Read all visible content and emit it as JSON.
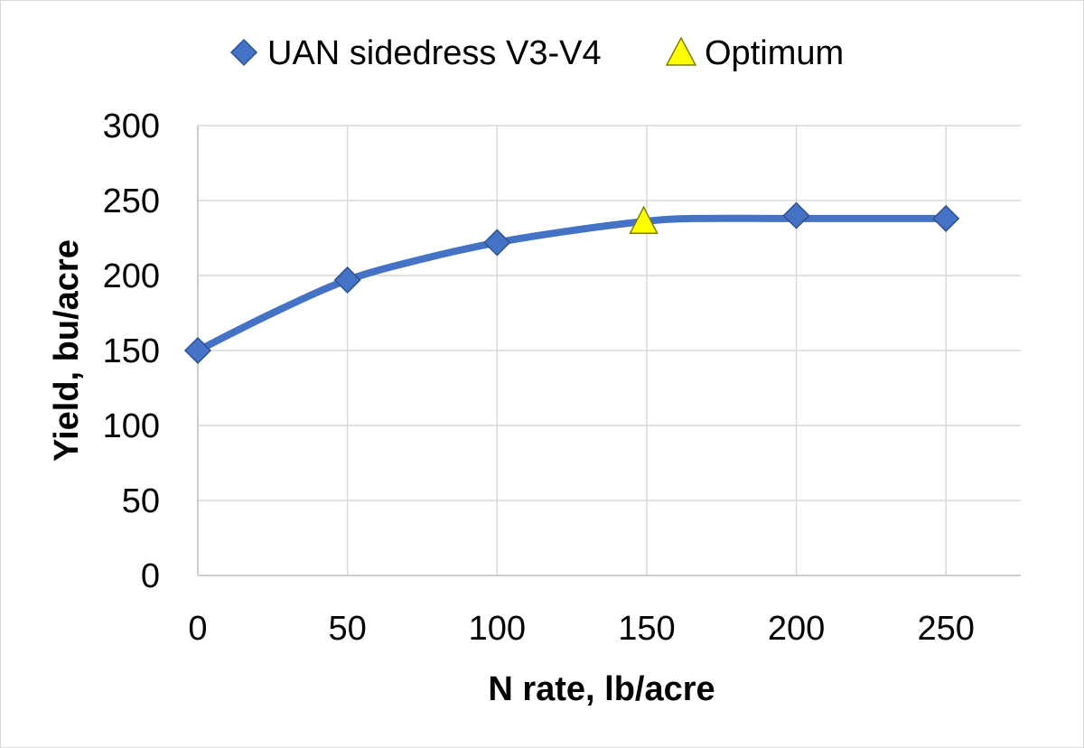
{
  "chart_data": {
    "type": "scatter",
    "title": "",
    "xlabel": "N rate, lb/acre",
    "ylabel": "Yield, bu/acre",
    "xlim": [
      0,
      275
    ],
    "ylim": [
      0,
      300
    ],
    "x_ticks": [
      0,
      50,
      100,
      150,
      200,
      250
    ],
    "y_ticks": [
      0,
      50,
      100,
      150,
      200,
      250,
      300
    ],
    "grid": true,
    "legend_position": "top-center",
    "series": [
      {
        "name": "UAN sidedress V3-V4",
        "marker": "diamond",
        "color": "#4472c4",
        "smooth_line": true,
        "x": [
          0,
          50,
          100,
          200,
          250
        ],
        "y": [
          150,
          197,
          222,
          240,
          238
        ]
      },
      {
        "name": "Optimum",
        "marker": "triangle",
        "color": "#ffff00",
        "x": [
          149
        ],
        "y": [
          236
        ]
      }
    ],
    "fit_curve": {
      "x": [
        0,
        25,
        50,
        75,
        100,
        125,
        149,
        165,
        200,
        250
      ],
      "y": [
        150,
        175,
        197,
        211,
        222,
        230,
        236,
        238,
        238,
        238
      ]
    }
  }
}
